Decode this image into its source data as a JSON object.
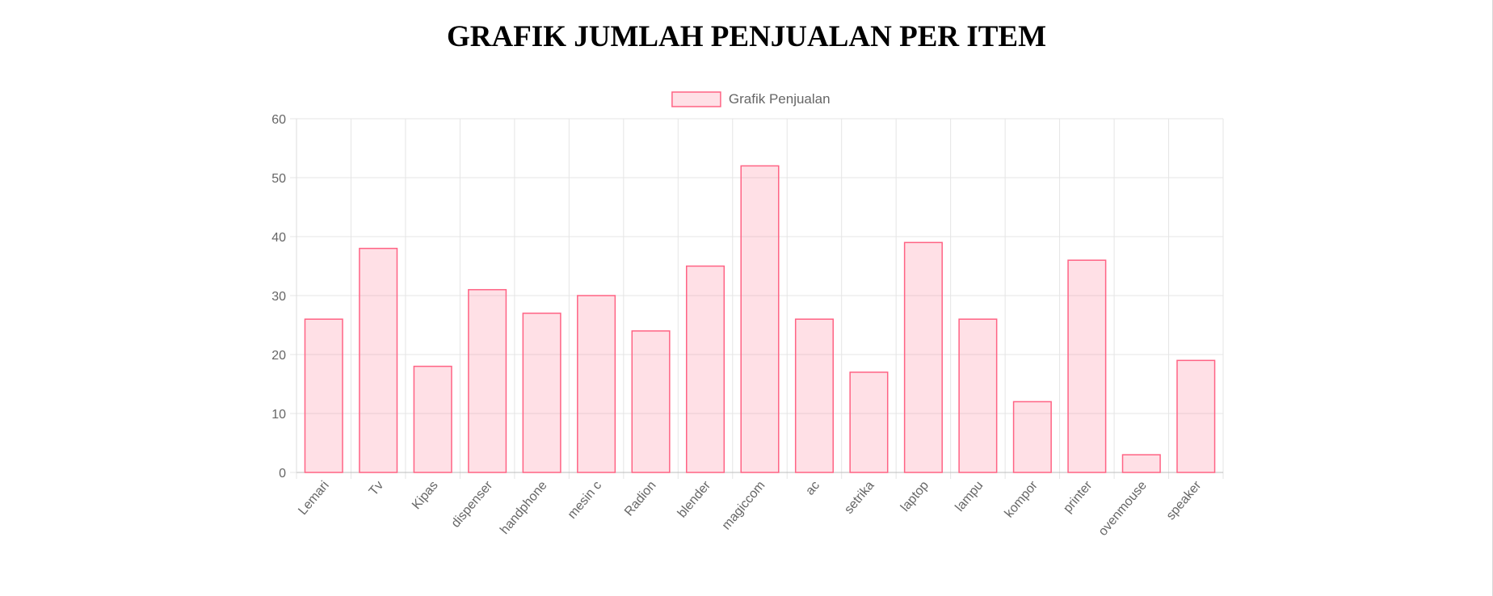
{
  "page": {
    "title": "GRAFIK JUMLAH PENJUALAN PER ITEM"
  },
  "chart_data": {
    "type": "bar",
    "title": "",
    "xlabel": "",
    "ylabel": "",
    "categories": [
      "Lemari",
      "Tv",
      "Kipas",
      "dispenser",
      "handphone",
      "mesin c",
      "Radion",
      "blender",
      "magiccom",
      "ac",
      "setrika",
      "laptop",
      "lampu",
      "kompor",
      "printer",
      "ovenmouse",
      "speaker"
    ],
    "series": [
      {
        "name": "Grafik Penjualan",
        "values": [
          26,
          38,
          18,
          31,
          27,
          30,
          24,
          35,
          52,
          26,
          17,
          39,
          26,
          12,
          36,
          3,
          19
        ]
      }
    ],
    "ylim": [
      0,
      60
    ],
    "yticks": [
      0,
      10,
      20,
      30,
      40,
      50,
      60
    ],
    "grid": true,
    "legend_position": "top-center",
    "colors": {
      "bar_fill": "rgba(255, 99, 132, 0.2)",
      "bar_border": "#ff6384",
      "grid": "#e5e5e5",
      "axis_text": "#666666"
    }
  }
}
